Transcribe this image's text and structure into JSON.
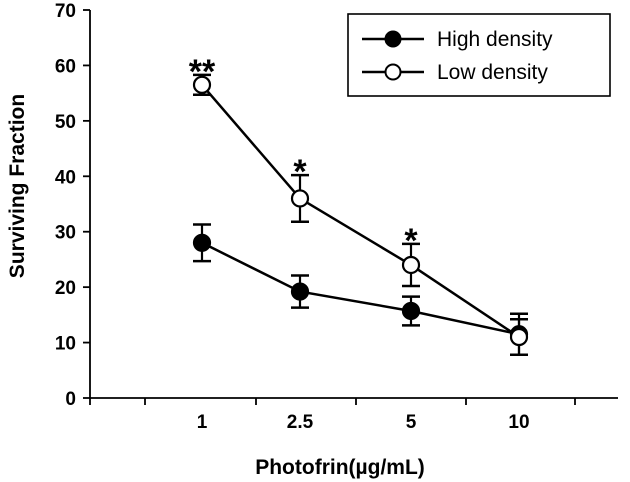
{
  "chart_data": {
    "type": "line",
    "xlabel": "Photofrin(µg/mL)",
    "ylabel": "Surviving Fraction",
    "categories": [
      "1",
      "2.5",
      "5",
      "10"
    ],
    "ylim": [
      0,
      70
    ],
    "y_ticks": [
      "0",
      "10",
      "20",
      "30",
      "40",
      "50",
      "60",
      "70"
    ],
    "grid": false,
    "legend_position": "top-right",
    "series": [
      {
        "name": "High density",
        "marker": "filled-circle",
        "values": [
          28,
          19.2,
          15.7,
          11.5
        ],
        "errors": [
          3.3,
          2.9,
          2.6,
          3.7
        ]
      },
      {
        "name": "Low density",
        "marker": "open-circle",
        "values": [
          56.5,
          36,
          24,
          11
        ],
        "errors": [
          1.8,
          4.2,
          3.8,
          3.2
        ]
      }
    ],
    "annotations": [
      {
        "category": "1",
        "text": "**"
      },
      {
        "category": "2.5",
        "text": "*"
      },
      {
        "category": "5",
        "text": "*"
      }
    ],
    "colors": {
      "line": "#000000",
      "background": "#ffffff"
    }
  }
}
